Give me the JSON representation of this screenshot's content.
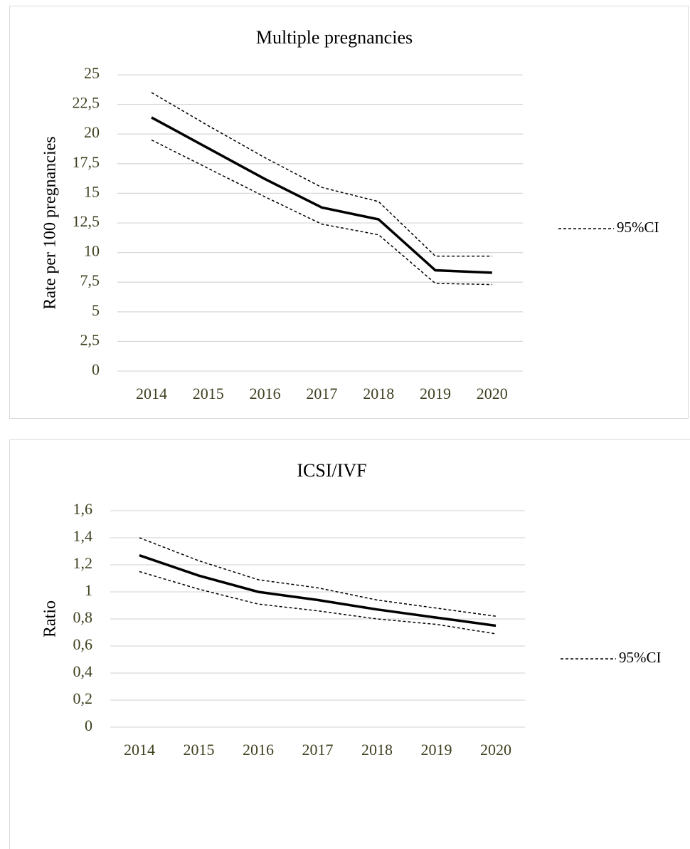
{
  "chart_data": [
    {
      "type": "line",
      "title": "Multiple pregnancies",
      "y_label": "Rate per 100 pregnancies",
      "categories": [
        "2014",
        "2015",
        "2016",
        "2017",
        "2018",
        "2019",
        "2020"
      ],
      "series": [
        {
          "color": "#000000",
          "values": [
            21.4,
            18.8,
            16.2,
            13.8,
            12.8,
            8.5,
            8.3
          ]
        }
      ],
      "ci": {
        "name": "95%CI",
        "color": "#000000",
        "upper": [
          23.5,
          20.7,
          18.0,
          15.5,
          14.3,
          9.7,
          9.7
        ],
        "lower": [
          19.5,
          17.1,
          14.7,
          12.4,
          11.5,
          7.4,
          7.3
        ]
      },
      "ylim": [
        0,
        25
      ],
      "yticks": [
        0,
        {
          "value": 2.5,
          "label": "2,5"
        },
        5,
        {
          "value": 7.5,
          "label": "7,5"
        },
        10,
        {
          "value": 12.5,
          "label": "12,5"
        },
        15,
        {
          "value": 17.5,
          "label": "17,5"
        },
        20,
        {
          "value": 22.5,
          "label": "22,5"
        },
        25
      ],
      "grid": true
    },
    {
      "type": "line",
      "title": "ICSI/IVF",
      "y_label": "Ratio",
      "categories": [
        "2014",
        "2015",
        "2016",
        "2017",
        "2018",
        "2019",
        "2020"
      ],
      "series": [
        {
          "color": "#000000",
          "values": [
            1.27,
            1.12,
            1.0,
            0.94,
            0.87,
            0.81,
            0.75
          ]
        }
      ],
      "ci": {
        "name": "95%CI",
        "color": "#000000",
        "upper": [
          1.4,
          1.23,
          1.09,
          1.03,
          0.94,
          0.88,
          0.82
        ],
        "lower": [
          1.15,
          1.02,
          0.91,
          0.86,
          0.8,
          0.76,
          0.69
        ]
      },
      "ylim": [
        0,
        1.6
      ],
      "yticks": [
        0,
        {
          "value": 0.2,
          "label": "0,2"
        },
        {
          "value": 0.4,
          "label": "0,4"
        },
        {
          "value": 0.6,
          "label": "0,6"
        },
        {
          "value": 0.8,
          "label": "0,8"
        },
        1,
        {
          "value": 1.2,
          "label": "1,2"
        },
        {
          "value": 1.4,
          "label": "1,4"
        },
        {
          "value": 1.6,
          "label": "1,6"
        }
      ],
      "grid": true
    }
  ]
}
